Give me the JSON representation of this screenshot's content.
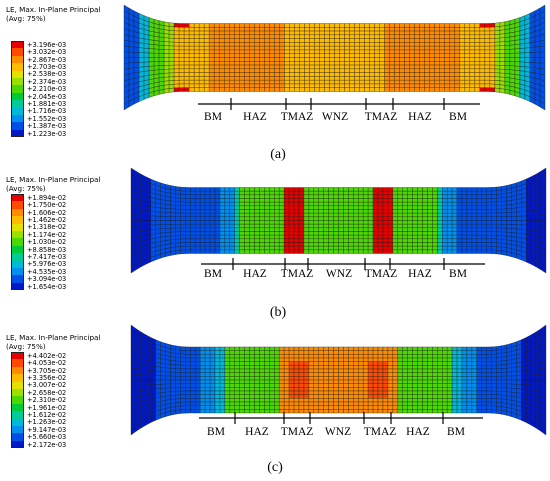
{
  "panels": [
    {
      "caption": "(a)",
      "legend": {
        "title_line1": "LE, Max. In-Plane Principal",
        "title_line2": "(Avg: 75%)",
        "entries": [
          {
            "value": "+3.196e-03",
            "color": "#e60000"
          },
          {
            "value": "+3.032e-03",
            "color": "#ff4a00"
          },
          {
            "value": "+2.867e-03",
            "color": "#ff8c00"
          },
          {
            "value": "+2.703e-03",
            "color": "#ffbb00"
          },
          {
            "value": "+2.538e-03",
            "color": "#e3e100"
          },
          {
            "value": "+2.374e-03",
            "color": "#9ae000"
          },
          {
            "value": "+2.210e-03",
            "color": "#4cd800"
          },
          {
            "value": "+2.045e-03",
            "color": "#00cc3a"
          },
          {
            "value": "+1.881e-03",
            "color": "#00cc99"
          },
          {
            "value": "+1.716e-03",
            "color": "#00b8d8"
          },
          {
            "value": "+1.552e-03",
            "color": "#0090f0"
          },
          {
            "value": "+1.387e-03",
            "color": "#0050e8"
          },
          {
            "value": "+1.223e-03",
            "color": "#0018c8"
          }
        ]
      },
      "zones": [
        "BM",
        "HAZ",
        "TMAZ",
        "WNZ",
        "TMAZ",
        "HAZ",
        "BM"
      ]
    },
    {
      "caption": "(b)",
      "legend": {
        "title_line1": "LE, Max. In-Plane Principal",
        "title_line2": "(Avg: 75%)",
        "entries": [
          {
            "value": "+1.894e-02",
            "color": "#e60000"
          },
          {
            "value": "+1.750e-02",
            "color": "#ff4a00"
          },
          {
            "value": "+1.606e-02",
            "color": "#ff8c00"
          },
          {
            "value": "+1.462e-02",
            "color": "#ffbb00"
          },
          {
            "value": "+1.318e-02",
            "color": "#e3e100"
          },
          {
            "value": "+1.174e-02",
            "color": "#9ae000"
          },
          {
            "value": "+1.030e-02",
            "color": "#4cd800"
          },
          {
            "value": "+8.858e-03",
            "color": "#00cc3a"
          },
          {
            "value": "+7.417e-03",
            "color": "#00cc99"
          },
          {
            "value": "+5.976e-03",
            "color": "#00b8d8"
          },
          {
            "value": "+4.535e-03",
            "color": "#0090f0"
          },
          {
            "value": "+3.094e-03",
            "color": "#0050e8"
          },
          {
            "value": "+1.654e-03",
            "color": "#0018c8"
          }
        ]
      },
      "zones": [
        "BM",
        "HAZ",
        "TMAZ",
        "WNZ",
        "TMAZ",
        "HAZ",
        "BM"
      ]
    },
    {
      "caption": "(c)",
      "legend": {
        "title_line1": "LE, Max. In-Plane Principal",
        "title_line2": "(Avg: 75%)",
        "entries": [
          {
            "value": "+4.402e-02",
            "color": "#e60000"
          },
          {
            "value": "+4.053e-02",
            "color": "#ff4a00"
          },
          {
            "value": "+3.705e-02",
            "color": "#ff8c00"
          },
          {
            "value": "+3.356e-02",
            "color": "#ffbb00"
          },
          {
            "value": "+3.007e-02",
            "color": "#e3e100"
          },
          {
            "value": "+2.658e-02",
            "color": "#9ae000"
          },
          {
            "value": "+2.310e-02",
            "color": "#4cd800"
          },
          {
            "value": "+1.961e-02",
            "color": "#00cc3a"
          },
          {
            "value": "+1.612e-02",
            "color": "#00cc99"
          },
          {
            "value": "+1.263e-02",
            "color": "#00b8d8"
          },
          {
            "value": "+9.147e-03",
            "color": "#0090f0"
          },
          {
            "value": "+5.660e-03",
            "color": "#0050e8"
          },
          {
            "value": "+2.172e-03",
            "color": "#0018c8"
          }
        ]
      },
      "zones": [
        "BM",
        "HAZ",
        "TMAZ",
        "WNZ",
        "TMAZ",
        "HAZ",
        "BM"
      ]
    }
  ]
}
